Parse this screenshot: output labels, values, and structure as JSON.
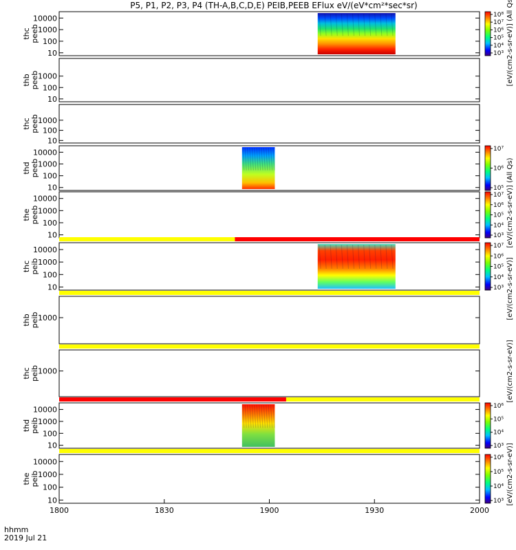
{
  "chart_data": {
    "type": "heatmap",
    "title": "P5, P1, P2, P3, P4 (TH-A,B,C,D,E) PEIB,PEEB EFlux eV/(eV*cm²*sec*sr)",
    "x_axis": {
      "ticks": [
        "1800",
        "1830",
        "1900",
        "1930",
        "2000"
      ],
      "corner_label": "hhmm",
      "date_label": "2019 Jul 21"
    },
    "panels": [
      {
        "name": "thc peeb",
        "line1": "thc",
        "line2": "peeb",
        "yticks": [
          "10",
          "100",
          "1000",
          "10000"
        ],
        "has_data": true,
        "data_start": 0.615,
        "data_end": 0.8,
        "colorbar": true,
        "cb_ticks": [
          "10³",
          "10⁴",
          "10⁵",
          "10⁶",
          "10⁷",
          "10⁸"
        ],
        "colorbar_label": "[eV/(cm2-s-sr-eV)]"
      },
      {
        "name": "thb peeb",
        "line1": "thb",
        "line2": "peeb",
        "yticks": [
          "10",
          "100",
          "1000"
        ],
        "has_data": false,
        "colorbar": false
      },
      {
        "name": "thc peeb",
        "line1": "thc",
        "line2": "peeb",
        "yticks": [
          "10",
          "100",
          "1000"
        ],
        "has_data": false,
        "colorbar": false
      },
      {
        "name": "thd peeb",
        "line1": "thd",
        "line2": "peeb",
        "yticks": [
          "10",
          "100",
          "1000",
          "10000"
        ],
        "has_data": true,
        "data_start": 0.435,
        "data_end": 0.513,
        "colorbar": true,
        "cb_ticks": [
          "10⁵",
          "10⁶",
          "10⁷"
        ],
        "colorbar_label": "[eV/(cm2-s-sr-eV)]"
      },
      {
        "name": "the peeb",
        "line1": "the",
        "line2": "peeb",
        "yticks": [
          "10",
          "100",
          "1000",
          "10000"
        ],
        "has_data": false,
        "colorbar": true,
        "cb_ticks": [
          "10³",
          "10⁴",
          "10⁵",
          "10⁶",
          "10⁷"
        ],
        "colorbar_label": "[eV/(cm2-s-sr-eV)]"
      },
      {
        "name": "thc peib",
        "line1": "thc",
        "line2": "peib",
        "yticks": [
          "10",
          "100",
          "1000",
          "10000"
        ],
        "has_data": true,
        "data_start": 0.615,
        "data_end": 0.8,
        "colorbar": true,
        "cb_ticks": [
          "10³",
          "10⁴",
          "10⁵",
          "10⁶",
          "10⁷"
        ],
        "colorbar_label": "[eV/(cm2-s-sr-eV)]",
        "flag_bar": [
          [
            "#ffff00",
            0,
            0.418
          ],
          [
            "#ff0000",
            0.418,
            1
          ]
        ]
      },
      {
        "name": "thb peib",
        "line1": "thb",
        "line2": "peib",
        "yticks": [
          "1000"
        ],
        "has_data": false,
        "colorbar": false,
        "flag_bar": [
          [
            "#ffff00",
            0,
            1
          ]
        ]
      },
      {
        "name": "thc peib",
        "line1": "thc",
        "line2": "peib",
        "yticks": [
          "1000"
        ],
        "has_data": false,
        "colorbar": false,
        "flag_bar": [
          [
            "#ffff00",
            0,
            1
          ]
        ]
      },
      {
        "name": "thd peib",
        "line1": "thd",
        "line2": "peib",
        "yticks": [
          "10",
          "100",
          "1000",
          "10000"
        ],
        "has_data": true,
        "data_start": 0.435,
        "data_end": 0.513,
        "colorbar": true,
        "cb_ticks": [
          "10³",
          "10⁴",
          "10⁵",
          "10⁶"
        ],
        "colorbar_label": "[eV/(cm2-s-sr-eV)]",
        "flag_bar": [
          [
            "#ff0000",
            0,
            0.54
          ],
          [
            "#ffff00",
            0.54,
            1
          ]
        ]
      },
      {
        "name": "the peib",
        "line1": "the",
        "line2": "peib",
        "yticks": [
          "10",
          "100",
          "1000",
          "10000"
        ],
        "has_data": false,
        "colorbar": true,
        "cb_ticks": [
          "10³",
          "10⁴",
          "10⁵",
          "10⁶"
        ],
        "colorbar_label": "[eV/(cm2-s-sr-eV)]",
        "flag_bar": [
          [
            "#ffff00",
            0,
            1
          ]
        ]
      }
    ],
    "side_labels": [
      "[eV/(cm2-s-sr-eV)] (All Qs)",
      "[eV/(cm2-s-sr-eV)] (All Qs)",
      "[eV/(cm2-s-sr-eV)]"
    ]
  }
}
